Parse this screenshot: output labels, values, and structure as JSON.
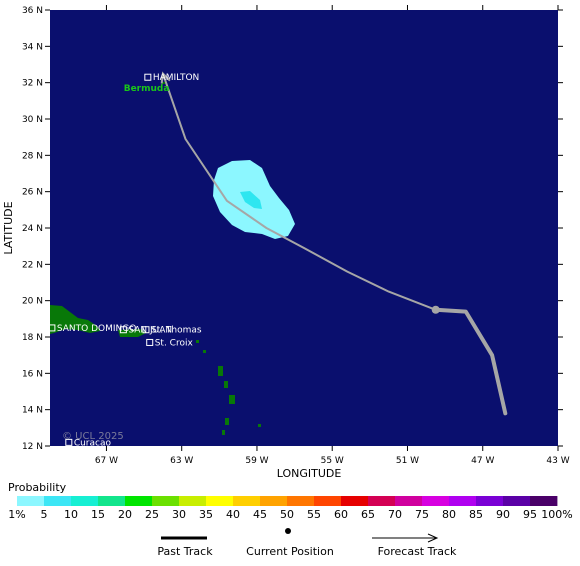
{
  "map": {
    "y_axis_title": "LATITUDE",
    "x_axis_title": "LONGITUDE",
    "lat_ticks": [
      "36 N",
      "34 N",
      "32 N",
      "30 N",
      "28 N",
      "26 N",
      "24 N",
      "22 N",
      "20 N",
      "18 N",
      "16 N",
      "14 N",
      "12 N"
    ],
    "lon_ticks": [
      "67 W",
      "63 W",
      "59 W",
      "55 W",
      "51 W",
      "47 W",
      "43 W"
    ],
    "watermark": "© UCL 2025",
    "colors": {
      "ocean": "#0a0f6e",
      "land": "#087808",
      "track": "#a6a6a6",
      "probability_low": "#8cf7ff",
      "probability_mid": "#2ee6f0"
    }
  },
  "places": [
    {
      "name": "HAMILTON",
      "lat": 32.3,
      "lon": -64.8,
      "marker": true
    },
    {
      "name": "Bermuda",
      "lat": 31.7,
      "lon": -64.7,
      "marker": false,
      "color": "#19c619"
    },
    {
      "name": "SANTO DOMINGO",
      "lat": 18.5,
      "lon": -69.9,
      "marker": true
    },
    {
      "name": "SAN JUAN",
      "lat": 18.4,
      "lon": -66.1,
      "marker": true
    },
    {
      "name": "St. Thomas",
      "lat": 18.4,
      "lon": -64.9,
      "marker": true
    },
    {
      "name": "St. Croix",
      "lat": 17.7,
      "lon": -64.7,
      "marker": true
    },
    {
      "name": "Curacao",
      "lat": 12.2,
      "lon": -69.0,
      "marker": true
    }
  ],
  "track": {
    "past": [
      [
        -45.8,
        13.8
      ],
      [
        -46.5,
        17.0
      ],
      [
        -47.9,
        19.4
      ],
      [
        -49.5,
        19.5
      ]
    ],
    "current": [
      -49.5,
      19.5
    ],
    "forecast": [
      [
        -49.5,
        19.5
      ],
      [
        -52.0,
        20.5
      ],
      [
        -54.2,
        21.6
      ],
      [
        -56.5,
        22.9
      ],
      [
        -58.5,
        24.0
      ],
      [
        -60.6,
        25.5
      ],
      [
        -62.8,
        28.9
      ],
      [
        -64.0,
        32.5
      ]
    ]
  },
  "legend": {
    "title": "Probability",
    "labels": [
      "1%",
      "5",
      "10",
      "15",
      "20",
      "25",
      "30",
      "35",
      "40",
      "45",
      "50",
      "55",
      "60",
      "65",
      "70",
      "75",
      "80",
      "85",
      "90",
      "95",
      "100%"
    ],
    "colors": [
      "#8cf7ff",
      "#3ce6f5",
      "#17efd3",
      "#12e58c",
      "#00e500",
      "#6be000",
      "#c8ee00",
      "#ffff00",
      "#ffcf00",
      "#ffa300",
      "#ff7600",
      "#ff4500",
      "#e60000",
      "#d40054",
      "#d0009e",
      "#d700e0",
      "#b000f0",
      "#7a00d5",
      "#5a00a6",
      "#4a0068"
    ],
    "past_track_label": "Past Track",
    "current_position_label": "Current Position",
    "forecast_track_label": "Forecast Track"
  }
}
